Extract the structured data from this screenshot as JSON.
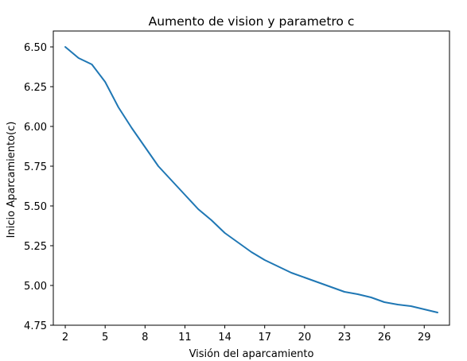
{
  "chart_data": {
    "type": "line",
    "title": "Aumento de vision y parametro c",
    "xlabel": "Visión del aparcamiento",
    "ylabel": "Inicio Aparcamiento(c)",
    "xlim": [
      1.1,
      30.9
    ],
    "ylim": [
      4.75,
      6.6
    ],
    "xticks": [
      2,
      5,
      8,
      11,
      14,
      17,
      20,
      23,
      26,
      29
    ],
    "yticks": [
      4.75,
      5.0,
      5.25,
      5.5,
      5.75,
      6.0,
      6.25,
      6.5
    ],
    "ytick_labels": [
      "4.75",
      "5.00",
      "5.25",
      "5.50",
      "5.75",
      "6.00",
      "6.25",
      "6.50"
    ],
    "grid": false,
    "line_color": "#1f77b4",
    "series": [
      {
        "x": [
          2,
          3,
          4,
          5,
          6,
          7,
          8,
          9,
          10,
          11,
          12,
          13,
          14,
          15,
          16,
          17,
          18,
          19,
          20,
          21,
          22,
          23,
          24,
          25,
          26,
          27,
          28,
          29,
          30
        ],
        "values": [
          6.5,
          6.43,
          6.39,
          6.28,
          6.12,
          5.99,
          5.87,
          5.75,
          5.66,
          5.57,
          5.48,
          5.41,
          5.33,
          5.27,
          5.21,
          5.16,
          5.12,
          5.08,
          5.05,
          5.02,
          4.99,
          4.96,
          4.945,
          4.925,
          4.895,
          4.88,
          4.87,
          4.85,
          4.83
        ]
      }
    ]
  }
}
